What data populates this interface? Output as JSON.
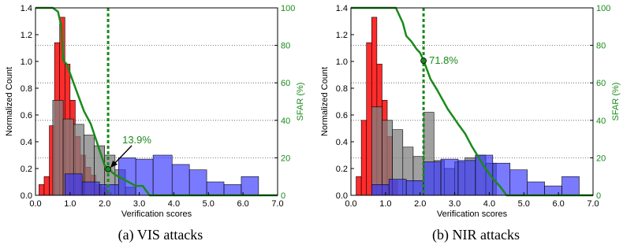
{
  "colors": {
    "vis_bars": "#ff1a1a",
    "impostor_bars": "#808080",
    "attack_bars": "#3333ff",
    "sfar_line": "#1a8a1a"
  },
  "chart_data": [
    {
      "type": "bar",
      "panel": "a",
      "caption": "(a) VIS attacks",
      "xlabel": "Verification scores",
      "ylabel": "Normalized Count",
      "y2label": "SFAR (%)",
      "xlim": [
        0,
        7
      ],
      "ylim": [
        0,
        1.4
      ],
      "y2lim": [
        0,
        100
      ],
      "xticks": [
        "0.0",
        "1.0",
        "2.0",
        "3.0",
        "4.0",
        "5.0",
        "6.0",
        "7.0"
      ],
      "yticks": [
        "0.0",
        "0.2",
        "0.4",
        "0.6",
        "0.8",
        "1.0",
        "1.2",
        "1.4"
      ],
      "y2ticks": [
        "0",
        "20",
        "40",
        "60",
        "80",
        "100"
      ],
      "threshold_x": 2.1,
      "grid": "horizontal dotted",
      "series": [
        {
          "color": "red",
          "bin_edges": [
            0.0,
            0.1,
            0.25,
            0.4,
            0.55,
            0.7,
            0.85,
            1.0,
            1.15,
            1.3,
            1.45,
            1.6,
            1.75,
            1.9,
            2.05,
            2.2
          ],
          "values": [
            0.0,
            0.08,
            0.14,
            0.52,
            1.14,
            1.33,
            0.98,
            0.71,
            0.44,
            0.3,
            0.21,
            0.15,
            0.08,
            0.06,
            0.02
          ]
        },
        {
          "color": "gray",
          "bin_edges": [
            0.5,
            0.8,
            1.1,
            1.4,
            1.7,
            2.0,
            2.3,
            2.6,
            2.9
          ],
          "values": [
            0.71,
            0.57,
            0.53,
            0.45,
            0.37,
            0.3,
            0.19,
            0.06
          ]
        },
        {
          "color": "blue",
          "bin_edges": [
            0.85,
            1.35,
            1.85,
            2.4,
            2.9,
            3.4,
            3.95,
            4.45,
            4.95,
            5.45,
            5.95,
            6.45
          ],
          "values": [
            0.16,
            0.1,
            0.08,
            0.28,
            0.27,
            0.3,
            0.23,
            0.19,
            0.1,
            0.08,
            0.14
          ]
        }
      ],
      "sfar_curve": {
        "x": [
          0.0,
          0.5,
          0.65,
          0.75,
          0.8,
          0.9,
          1.0,
          1.2,
          1.4,
          1.6,
          1.8,
          2.0,
          2.1,
          2.3,
          2.5,
          2.7,
          2.9,
          3.1,
          3.3,
          7.0
        ],
        "y": [
          100,
          100,
          98,
          90,
          72,
          70,
          65,
          55,
          45,
          38,
          27,
          16,
          14,
          11,
          9,
          7,
          5,
          5,
          0,
          0
        ]
      },
      "marker": {
        "x": 2.1,
        "y2": 13.9,
        "label": "13.9%"
      }
    },
    {
      "type": "bar",
      "panel": "b",
      "caption": "(b) NIR attacks",
      "xlabel": "Verification scores",
      "ylabel": "Normalized Count",
      "y2label": "SFAR (%)",
      "xlim": [
        0,
        7
      ],
      "ylim": [
        0,
        1.4
      ],
      "y2lim": [
        0,
        100
      ],
      "xticks": [
        "0.0",
        "1.0",
        "2.0",
        "3.0",
        "4.0",
        "5.0",
        "6.0",
        "7.0"
      ],
      "yticks": [
        "0.0",
        "0.2",
        "0.4",
        "0.6",
        "0.8",
        "1.0",
        "1.2",
        "1.4"
      ],
      "y2ticks": [
        "0",
        "20",
        "40",
        "60",
        "80",
        "100"
      ],
      "threshold_x": 2.1,
      "grid": "horizontal dotted",
      "series": [
        {
          "color": "red",
          "bin_edges": [
            0.0,
            0.15,
            0.3,
            0.45,
            0.6,
            0.75,
            0.9,
            1.05,
            1.2,
            1.35
          ],
          "values": [
            0.0,
            0.14,
            0.56,
            1.14,
            1.33,
            0.98,
            0.71,
            0.44,
            0.11
          ]
        },
        {
          "color": "gray",
          "bin_edges": [
            0.6,
            0.9,
            1.2,
            1.5,
            1.8,
            2.1,
            2.4,
            2.7,
            3.0,
            3.3,
            3.6,
            3.9,
            4.2
          ],
          "values": [
            0.66,
            0.56,
            0.49,
            0.36,
            0.29,
            0.62,
            0.26,
            0.2,
            0.25,
            0.28,
            0.3,
            0.24
          ]
        },
        {
          "color": "blue",
          "bin_edges": [
            0.6,
            1.1,
            1.6,
            2.1,
            2.6,
            3.1,
            3.6,
            4.1,
            4.6,
            5.1,
            5.6,
            6.1,
            6.6
          ],
          "values": [
            0.08,
            0.12,
            0.11,
            0.25,
            0.27,
            0.26,
            0.3,
            0.24,
            0.19,
            0.1,
            0.07,
            0.14
          ]
        }
      ],
      "sfar_curve": {
        "x": [
          0.0,
          1.3,
          1.5,
          1.6,
          1.75,
          1.9,
          2.0,
          2.1,
          2.3,
          2.5,
          2.8,
          3.1,
          3.3,
          3.5,
          3.7,
          3.9,
          4.1,
          4.3,
          4.5,
          7.0
        ],
        "y": [
          100,
          100,
          92,
          85,
          82,
          78,
          76,
          72,
          62,
          56,
          46,
          38,
          33,
          26,
          20,
          14,
          9,
          5,
          0,
          0
        ]
      },
      "marker": {
        "x": 2.1,
        "y2": 71.8,
        "label": "71.8%"
      }
    }
  ]
}
